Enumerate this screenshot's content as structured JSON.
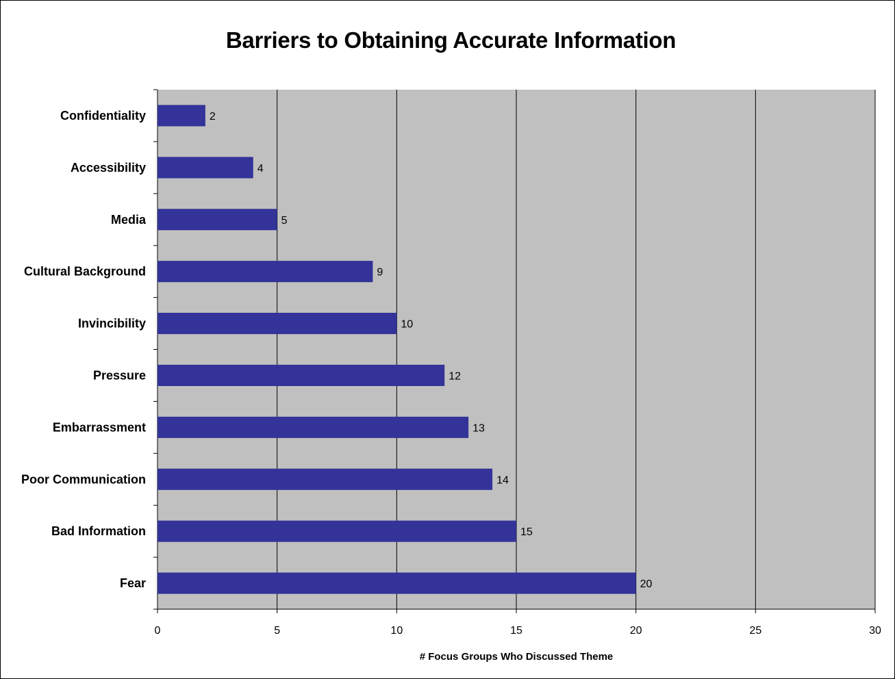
{
  "chart_data": {
    "type": "bar",
    "orientation": "horizontal",
    "title": "Barriers to Obtaining Accurate Information",
    "xlabel": "# Focus Groups Who Discussed Theme",
    "ylabel": "",
    "categories": [
      "Confidentiality",
      "Accessibility",
      "Media",
      "Cultural Background",
      "Invincibility",
      "Pressure",
      "Embarrassment",
      "Poor Communication",
      "Bad Information",
      "Fear"
    ],
    "values": [
      2,
      4,
      5,
      9,
      10,
      12,
      13,
      14,
      15,
      20
    ],
    "xlim": [
      0,
      30
    ],
    "xticks": [
      0,
      5,
      10,
      15,
      20,
      25,
      30
    ],
    "grid": "vertical",
    "legend": "none",
    "colors": {
      "bar": "#333399",
      "plot_background": "#c0c0c0",
      "gridline": "#000000"
    }
  }
}
